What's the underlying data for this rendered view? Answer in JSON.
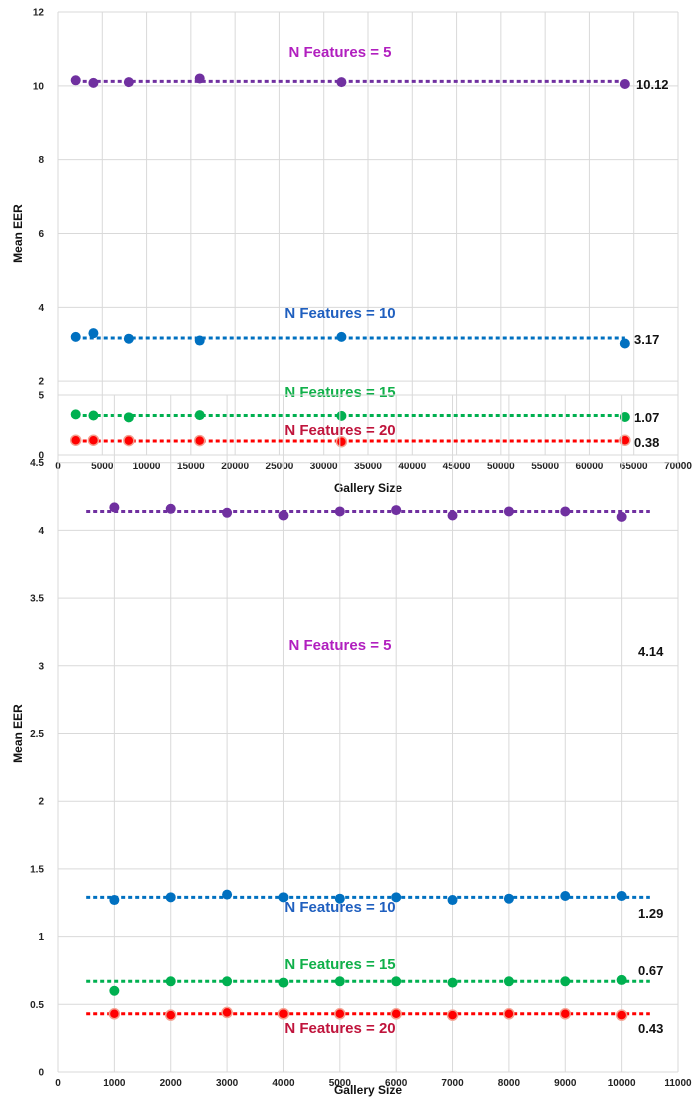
{
  "chart_data": [
    {
      "type": "scatter",
      "xlabel": "Gallery Size",
      "ylabel": "Mean EER",
      "xlim": [
        0,
        70000
      ],
      "ylim": [
        0,
        12
      ],
      "x_ticks": [
        "0",
        "5000",
        "10000",
        "15000",
        "20000",
        "25000",
        "30000",
        "35000",
        "40000",
        "45000",
        "50000",
        "55000",
        "60000",
        "65000",
        "70000"
      ],
      "y_ticks": [
        "0",
        "2",
        "4",
        "6",
        "8",
        "10",
        "12"
      ],
      "grid": true,
      "trendline_x_range": [
        2000,
        64000
      ],
      "x": [
        2000,
        4000,
        8000,
        16000,
        32000,
        64000
      ],
      "series": [
        {
          "name": "N Features = 5",
          "color": "#7030a0",
          "label_color": "#b11fbf",
          "values": [
            10.15,
            10.08,
            10.1,
            10.2,
            10.1,
            10.05
          ],
          "trend": 10.12,
          "end_label": "10.12"
        },
        {
          "name": "N Features = 10",
          "color": "#0070c0",
          "label_color": "#1f5fbf",
          "values": [
            3.2,
            3.3,
            3.15,
            3.1,
            3.2,
            3.02
          ],
          "trend": 3.17,
          "end_label": "3.17"
        },
        {
          "name": "N Features = 15",
          "color": "#00b050",
          "label_color": "#10b04a",
          "values": [
            1.1,
            1.07,
            1.02,
            1.08,
            1.06,
            1.03
          ],
          "trend": 1.07,
          "end_label": "1.07"
        },
        {
          "name": "N Features = 20",
          "color": "#ff0000",
          "label_color": "#c0143c",
          "values": [
            0.4,
            0.4,
            0.39,
            0.39,
            0.36,
            0.4
          ],
          "trend": 0.38,
          "end_label": "0.38"
        }
      ]
    },
    {
      "type": "scatter",
      "xlabel": "Gallery Size",
      "ylabel": "Mean EER",
      "xlim": [
        0,
        11000
      ],
      "ylim": [
        0,
        5
      ],
      "x_ticks": [
        "0",
        "1000",
        "2000",
        "3000",
        "4000",
        "5000",
        "6000",
        "7000",
        "8000",
        "9000",
        "10000",
        "11000"
      ],
      "y_ticks": [
        "0",
        "0.5",
        "1",
        "1.5",
        "2",
        "2.5",
        "3",
        "3.5",
        "4",
        "4.5",
        "5"
      ],
      "grid": true,
      "trendline_x_range": [
        500,
        10500
      ],
      "x": [
        1000,
        2000,
        3000,
        4000,
        5000,
        6000,
        7000,
        8000,
        9000,
        10000
      ],
      "series": [
        {
          "name": "N Features = 5",
          "color": "#7030a0",
          "label_color": "#b11fbf",
          "values": [
            4.17,
            4.16,
            4.13,
            4.11,
            4.14,
            4.15,
            4.11,
            4.14,
            4.14,
            4.1
          ],
          "trend": 4.14,
          "end_label": "4.14"
        },
        {
          "name": "N Features = 10",
          "color": "#0070c0",
          "label_color": "#1f5fbf",
          "values": [
            1.27,
            1.29,
            1.31,
            1.29,
            1.28,
            1.29,
            1.27,
            1.28,
            1.3,
            1.3
          ],
          "trend": 1.29,
          "end_label": "1.29"
        },
        {
          "name": "N Features = 15",
          "color": "#00b050",
          "label_color": "#10b04a",
          "values": [
            0.6,
            0.67,
            0.67,
            0.66,
            0.67,
            0.67,
            0.66,
            0.67,
            0.67,
            0.68
          ],
          "trend": 0.67,
          "end_label": "0.67"
        },
        {
          "name": "N Features = 20",
          "color": "#ff0000",
          "label_color": "#c0143c",
          "values": [
            0.43,
            0.42,
            0.44,
            0.43,
            0.43,
            0.43,
            0.42,
            0.43,
            0.43,
            0.42
          ],
          "trend": 0.43,
          "end_label": "0.43"
        }
      ]
    }
  ]
}
